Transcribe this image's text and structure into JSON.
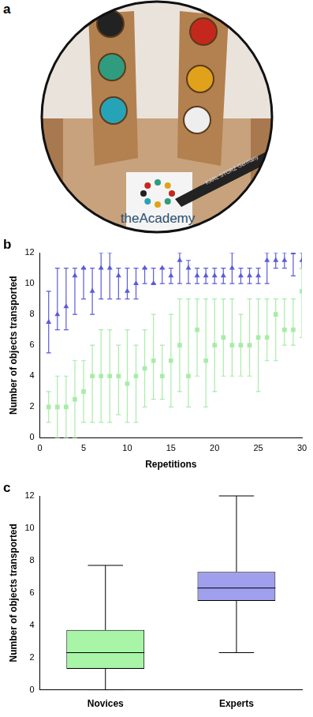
{
  "photo": {
    "title": "a",
    "texts": [
      "theAcademy",
      "KARL STORZ Germany"
    ]
  },
  "chart_data": [
    {
      "type": "scatter",
      "title": "b",
      "x_label": "Repetitions",
      "y_label": "Number of objects transported",
      "x": [
        1,
        2,
        3,
        4,
        5,
        6,
        7,
        8,
        9,
        10,
        11,
        12,
        13,
        14,
        15,
        16,
        17,
        18,
        19,
        20,
        21,
        22,
        23,
        24,
        25,
        26,
        27,
        28,
        29,
        30
      ],
      "series": [
        {
          "color": "#5b5bdc",
          "marker": "triangle",
          "values": [
            7.5,
            8,
            8.5,
            10.5,
            11,
            9.5,
            11,
            11,
            10.5,
            9.5,
            10,
            11,
            10,
            11,
            10.5,
            11.5,
            11,
            10.5,
            10.5,
            10.5,
            10.5,
            11,
            10.5,
            10.5,
            10.5,
            11.5,
            11.5,
            11.5,
            12,
            11.5
          ],
          "error_low": [
            5.5,
            7,
            7,
            8,
            9,
            8,
            9,
            9,
            9,
            9,
            9,
            10,
            10,
            10,
            10,
            10,
            10,
            10,
            10,
            10,
            10,
            10,
            10,
            10,
            10,
            10,
            11,
            11,
            10.5,
            11
          ],
          "error_high": [
            9.5,
            11,
            11,
            11,
            11,
            11,
            12,
            12,
            11,
            11,
            11,
            11,
            11,
            11,
            11,
            12,
            11.5,
            11,
            11,
            11,
            11,
            12,
            11,
            11,
            11,
            12,
            12,
            12,
            12,
            12
          ]
        },
        {
          "color": "#a8eca8",
          "marker": "square",
          "values": [
            2,
            2,
            2,
            2.5,
            3,
            4,
            4,
            4,
            4,
            3.5,
            4,
            4.5,
            5,
            4,
            5,
            6,
            4,
            7,
            5,
            6,
            6.5,
            6,
            6,
            6,
            6.5,
            6.5,
            8,
            7,
            7,
            9.5
          ],
          "error_low": [
            1,
            0,
            0,
            0,
            1,
            1,
            1,
            1,
            1.5,
            1,
            1,
            2,
            2.5,
            2.5,
            2,
            3,
            2,
            4,
            2,
            3,
            4,
            4,
            4,
            4,
            3,
            5,
            5,
            6,
            6,
            6.5
          ],
          "error_high": [
            3,
            4,
            4,
            5,
            5,
            6,
            7,
            7,
            6,
            7,
            6,
            7,
            8,
            6,
            8,
            9,
            9,
            9,
            9,
            9,
            9,
            9,
            8,
            9,
            9,
            9,
            9,
            9,
            9,
            11
          ]
        }
      ],
      "xlim": [
        0,
        30
      ],
      "xticks": [
        0,
        5,
        10,
        15,
        20,
        25,
        30
      ],
      "ylim": [
        0,
        12
      ],
      "yticks": [
        0,
        2,
        4,
        6,
        8,
        10,
        12
      ],
      "grid": false
    },
    {
      "type": "box",
      "title": "c",
      "y_label": "Number of objects transported",
      "categories": [
        "Novices",
        "Experts"
      ],
      "colors": [
        "#a8f5a8",
        "#9f9fee"
      ],
      "min": [
        0,
        2.3
      ],
      "q1": [
        1.3,
        5.5
      ],
      "median": [
        2.3,
        6.3
      ],
      "q3": [
        3.7,
        7.3
      ],
      "max": [
        7.7,
        12
      ],
      "ylim": [
        0,
        12
      ],
      "yticks": [
        0,
        2,
        4,
        6,
        8,
        10,
        12
      ],
      "grid": false
    }
  ]
}
